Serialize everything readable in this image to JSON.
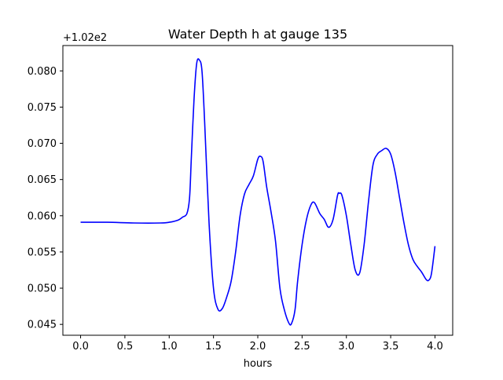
{
  "chart_data": {
    "type": "line",
    "title": "Water Depth h at gauge 135",
    "xlabel": "hours",
    "ylabel": "",
    "offset_label": "+1.02e2",
    "xlim": [
      -0.2,
      4.2
    ],
    "ylim": [
      0.0435,
      0.0835
    ],
    "xticks": [
      0.0,
      0.5,
      1.0,
      1.5,
      2.0,
      2.5,
      3.0,
      3.5,
      4.0
    ],
    "xtick_labels": [
      "0.0",
      "0.5",
      "1.0",
      "1.5",
      "2.0",
      "2.5",
      "3.0",
      "3.5",
      "4.0"
    ],
    "yticks": [
      0.045,
      0.05,
      0.055,
      0.06,
      0.065,
      0.07,
      0.075,
      0.08
    ],
    "ytick_labels": [
      "0.045",
      "0.050",
      "0.055",
      "0.060",
      "0.065",
      "0.070",
      "0.075",
      "0.080"
    ],
    "grid": false,
    "series": [
      {
        "color": "#0000ff",
        "x": [
          0.0,
          0.3,
          0.6,
          0.9,
          1.0,
          1.1,
          1.15,
          1.2,
          1.23,
          1.25,
          1.28,
          1.31,
          1.34,
          1.37,
          1.4,
          1.45,
          1.5,
          1.55,
          1.6,
          1.65,
          1.7,
          1.75,
          1.8,
          1.85,
          1.9,
          1.95,
          2.0,
          2.03,
          2.06,
          2.1,
          2.15,
          2.2,
          2.25,
          2.3,
          2.35,
          2.38,
          2.42,
          2.45,
          2.5,
          2.55,
          2.6,
          2.64,
          2.7,
          2.75,
          2.8,
          2.85,
          2.9,
          2.92,
          2.95,
          3.0,
          3.05,
          3.1,
          3.15,
          3.2,
          3.25,
          3.3,
          3.35,
          3.4,
          3.45,
          3.5,
          3.55,
          3.6,
          3.65,
          3.7,
          3.75,
          3.8,
          3.85,
          3.9,
          3.93,
          3.96,
          4.0
        ],
        "y": [
          0.0591,
          0.0591,
          0.059,
          0.059,
          0.0591,
          0.0594,
          0.0598,
          0.0603,
          0.0625,
          0.068,
          0.076,
          0.081,
          0.0815,
          0.08,
          0.073,
          0.059,
          0.05,
          0.0471,
          0.0472,
          0.0488,
          0.051,
          0.055,
          0.06,
          0.063,
          0.0643,
          0.0655,
          0.0678,
          0.0682,
          0.0675,
          0.064,
          0.0605,
          0.0565,
          0.05,
          0.047,
          0.0452,
          0.0451,
          0.047,
          0.051,
          0.056,
          0.0595,
          0.0615,
          0.0618,
          0.0603,
          0.0595,
          0.0584,
          0.0595,
          0.0628,
          0.0631,
          0.0628,
          0.06,
          0.056,
          0.0525,
          0.0521,
          0.056,
          0.062,
          0.067,
          0.0685,
          0.069,
          0.0693,
          0.0685,
          0.066,
          0.0625,
          0.059,
          0.056,
          0.054,
          0.053,
          0.0522,
          0.0512,
          0.0511,
          0.052,
          0.0558
        ]
      }
    ]
  }
}
